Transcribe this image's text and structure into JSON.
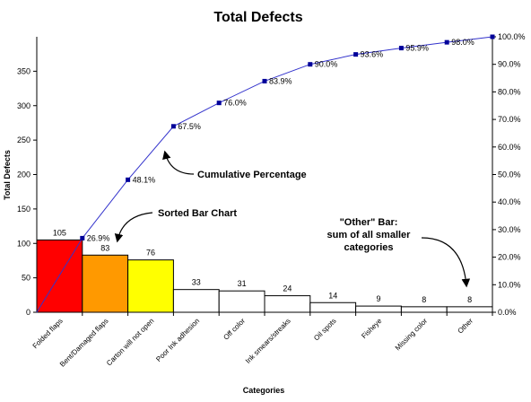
{
  "chart_data": {
    "type": "bar",
    "title": "Total Defects",
    "xlabel": "Categories",
    "ylabel": "Total Defects",
    "categories": [
      "Folded flaps",
      "Bent/Damaged flaps",
      "Carton will not open",
      "Poor Ink adhesion",
      "Off color",
      "Ink smears/streaks",
      "Oil spots",
      "Fisheye",
      "Missing color",
      "Other"
    ],
    "values": [
      105,
      83,
      76,
      33,
      31,
      24,
      14,
      9,
      8,
      8
    ],
    "bar_colors": [
      "#ff0000",
      "#ff9900",
      "#ffff00",
      "#ffffff",
      "#ffffff",
      "#ffffff",
      "#ffffff",
      "#ffffff",
      "#ffffff",
      "#ffffff"
    ],
    "cumulative_percent": [
      26.9,
      48.1,
      67.5,
      76.0,
      83.9,
      90.0,
      93.6,
      95.9,
      98.0,
      100.0
    ],
    "cumulative_labels": [
      "26.9%",
      "48.1%",
      "67.5%",
      "76.0%",
      "83.9%",
      "90.0%",
      "93.6%",
      "95.9%",
      "98.0%",
      ""
    ],
    "line_color": "#3333cc",
    "ylim": [
      0,
      400
    ],
    "y_ticks": [
      0,
      50,
      100,
      150,
      200,
      250,
      300,
      350
    ],
    "y2lim": [
      0,
      100
    ],
    "y2_ticks": [
      "0.0%",
      "10.0%",
      "20.0%",
      "30.0%",
      "40.0%",
      "50.0%",
      "60.0%",
      "70.0%",
      "80.0%",
      "90.0%",
      "100.0%"
    ],
    "grid": false,
    "annotations": [
      {
        "text": [
          "Cumulative Percentage"
        ]
      },
      {
        "text": [
          "Sorted Bar Chart"
        ]
      },
      {
        "text": [
          "\"Other\" Bar:",
          "sum of all smaller",
          "categories"
        ]
      }
    ]
  }
}
